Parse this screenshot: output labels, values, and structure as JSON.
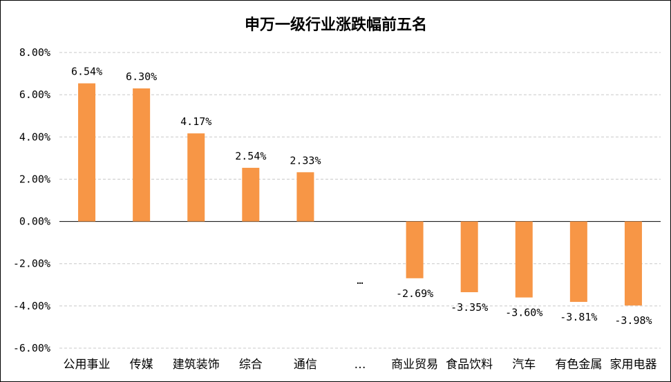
{
  "chart_data": {
    "type": "bar",
    "title": "申万一级行业涨跌幅前五名",
    "xlabel": "",
    "ylabel": "",
    "categories": [
      "公用事业",
      "传媒",
      "建筑装饰",
      "综合",
      "通信",
      "…",
      "商业贸易",
      "食品饮料",
      "汽车",
      "有色金属",
      "家用电器"
    ],
    "values": [
      6.54,
      6.3,
      4.17,
      2.54,
      2.33,
      null,
      -2.69,
      -3.35,
      -3.6,
      -3.81,
      -3.98
    ],
    "data_labels": [
      "6.54%",
      "6.30%",
      "4.17%",
      "2.54%",
      "2.33%",
      "…",
      "-2.69%",
      "-3.35%",
      "-3.60%",
      "-3.81%",
      "-3.98%"
    ],
    "ylim": [
      -6,
      8
    ],
    "yticks": [
      8,
      6,
      4,
      2,
      0,
      -2,
      -4,
      -6
    ],
    "ytick_labels": [
      "8.00%",
      "6.00%",
      "4.00%",
      "2.00%",
      "0.00%",
      "-2.00%",
      "-4.00%",
      "-6.00%"
    ],
    "grid": true,
    "legend": "none",
    "bar_color": "#F79646"
  }
}
